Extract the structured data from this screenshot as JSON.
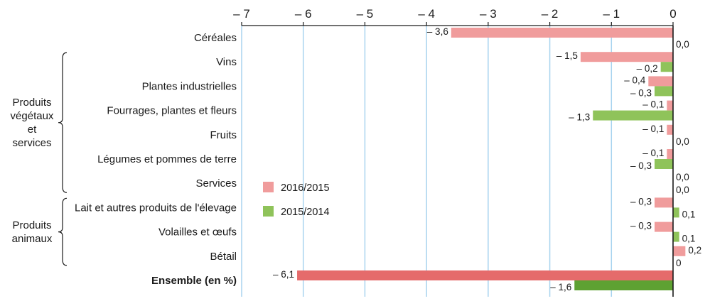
{
  "chart_data": {
    "type": "bar",
    "orientation": "horizontal",
    "xlim": [
      -7,
      0
    ],
    "xticks": [
      -7,
      -6,
      -5,
      -4,
      -3,
      -2,
      -1,
      0
    ],
    "xtick_labels": [
      "– 7",
      "– 6",
      "– 5",
      "– 4",
      "– 3",
      "– 2",
      "– 1",
      "0"
    ],
    "grid": true,
    "legend_position": "inside-left",
    "categories": [
      "Céréales",
      "Vins",
      "Plantes industrielles",
      "Fourrages, plantes et fleurs",
      "Fruits",
      "Légumes et pommes de terre",
      "Services",
      "Lait et autres produits de l'élevage",
      "Volailles et œufs",
      "Bétail",
      "Ensemble (en %)"
    ],
    "series": [
      {
        "name": "2016/2015",
        "color": "#f09c9c",
        "highlight_color": "#e56b6b",
        "values": [
          -3.6,
          -1.5,
          -0.4,
          -0.1,
          -0.1,
          -0.1,
          0.0,
          -0.3,
          -0.3,
          0.2,
          -6.1
        ],
        "labels": [
          "– 3,6",
          "– 1,5",
          "– 0,4",
          "– 0,1",
          "– 0,1",
          "– 0,1",
          "0,0",
          "– 0,3",
          "– 0,3",
          "0,2",
          "– 6,1"
        ]
      },
      {
        "name": "2015/2014",
        "color": "#8fc35a",
        "highlight_color": "#5ea132",
        "values": [
          0.0,
          -0.2,
          -0.3,
          -1.3,
          0.0,
          -0.3,
          0.0,
          0.1,
          0.1,
          0.0,
          -1.6
        ],
        "labels": [
          "0,0",
          "– 0,2",
          "– 0,3",
          "– 1,3",
          "0,0",
          "– 0,3",
          "0,0",
          "0,1",
          "0,1",
          "0",
          "– 1,6"
        ]
      }
    ],
    "groups": [
      {
        "lines": [
          "Produits",
          "végétaux",
          "et",
          "services"
        ],
        "from": 1,
        "to": 6
      },
      {
        "lines": [
          "Produits",
          "animaux"
        ],
        "from": 7,
        "to": 9
      }
    ]
  }
}
